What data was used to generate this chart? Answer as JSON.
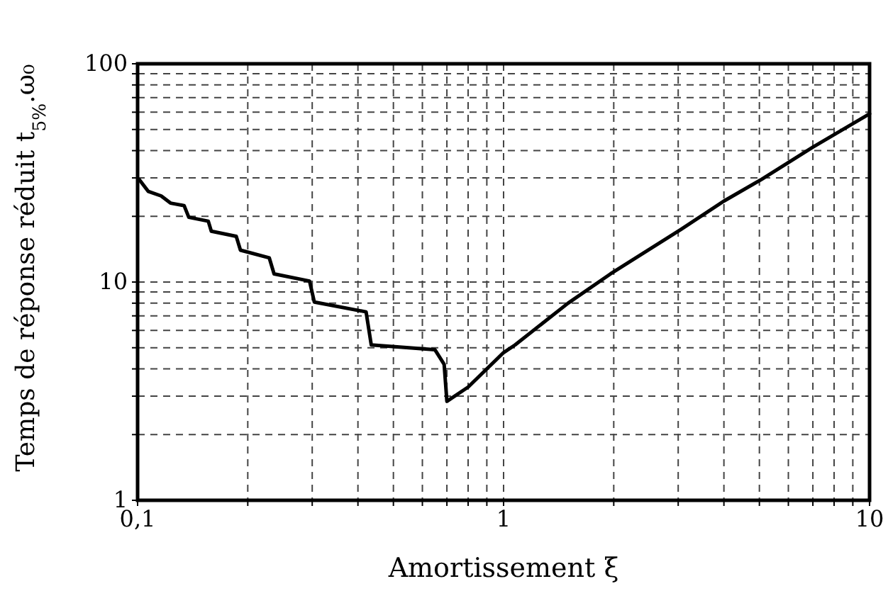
{
  "chart_data": {
    "type": "line",
    "xlabel": "Amortissement ξ",
    "ylabel": "Temps de réponse réduit t$_{5%}$.ω₀",
    "log": "xy",
    "grid": true,
    "line_style": "solid",
    "marker": "none",
    "xlim": [
      0.1,
      10
    ],
    "ylim": [
      1,
      100
    ],
    "xticks": [
      {
        "value": 0.1,
        "label": "0,1"
      },
      {
        "value": 0.2,
        "label": null
      },
      {
        "value": 0.3,
        "label": null
      },
      {
        "value": 0.4,
        "label": null
      },
      {
        "value": 0.5,
        "label": null
      },
      {
        "value": 0.6,
        "label": null
      },
      {
        "value": 0.7,
        "label": null
      },
      {
        "value": 0.8,
        "label": null
      },
      {
        "value": 0.9,
        "label": null
      },
      1,
      {
        "value": 2,
        "label": null
      },
      {
        "value": 3,
        "label": null
      },
      {
        "value": 4,
        "label": null
      },
      {
        "value": 5,
        "label": null
      },
      {
        "value": 6,
        "label": null
      },
      {
        "value": 7,
        "label": null
      },
      {
        "value": 8,
        "label": null
      },
      {
        "value": 9,
        "label": null
      },
      10
    ],
    "yticks": [
      1,
      {
        "value": 2,
        "label": null
      },
      {
        "value": 3,
        "label": null
      },
      {
        "value": 4,
        "label": null
      },
      {
        "value": 5,
        "label": null
      },
      {
        "value": 6,
        "label": null
      },
      {
        "value": 7,
        "label": null
      },
      {
        "value": 8,
        "label": null
      },
      {
        "value": 9,
        "label": null
      },
      10,
      {
        "value": 20,
        "label": null
      },
      {
        "value": 30,
        "label": null
      },
      {
        "value": 40,
        "label": null
      },
      {
        "value": 50,
        "label": null
      },
      {
        "value": 60,
        "label": null
      },
      {
        "value": 70,
        "label": null
      },
      {
        "value": 80,
        "label": null
      },
      {
        "value": 90,
        "label": null
      },
      100
    ],
    "series": [
      {
        "color": "#000000",
        "x": [
          0.101,
          0.107,
          0.116,
          0.123,
          0.134,
          0.138,
          0.156,
          0.159,
          0.186,
          0.191,
          0.229,
          0.236,
          0.295,
          0.304,
          0.421,
          0.435,
          0.649,
          0.688,
          0.7,
          0.8,
          0.9,
          1.0,
          1.075,
          1.5,
          1.96,
          3.05,
          4.0,
          5.06,
          7.0,
          10
        ],
        "values": [
          29.5,
          26,
          24.8,
          23,
          22.4,
          19.8,
          19,
          17.1,
          16.2,
          14,
          12.9,
          10.9,
          10.1,
          8.1,
          7.3,
          5.15,
          4.9,
          4.2,
          2.84,
          3.3,
          4.0,
          4.75,
          5.15,
          8.0,
          10.9,
          17.4,
          23.5,
          29.5,
          41.5,
          59
        ]
      }
    ]
  }
}
